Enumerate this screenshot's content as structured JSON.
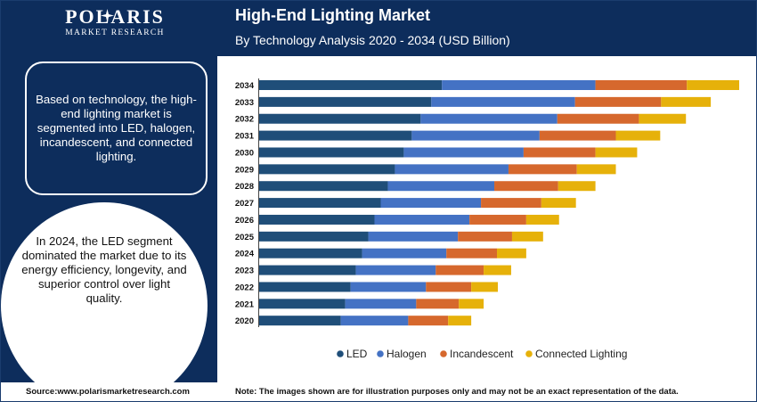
{
  "logo": {
    "name": "POLARIS",
    "sub": "MARKET RESEARCH"
  },
  "side": {
    "box_text": "Based on technology, the high-end lighting market is segmented into LED, halogen, incandescent, and connected lighting.",
    "circle_text": "In 2024, the LED segment dominated the market due to its energy efficiency, longevity, and superior control over light quality."
  },
  "footer": {
    "source": "Source:www.polarismarketresearch.com",
    "note": "Note: The images shown are for illustration purposes only and may not be an exact representation of the data."
  },
  "colors": {
    "navy": "#0d2d5c",
    "led": "#1f4e79",
    "halogen": "#4472c4",
    "incandescent": "#d6682d",
    "connected": "#e6b10a"
  },
  "chart_data": {
    "type": "bar",
    "orientation": "horizontal",
    "stacked": true,
    "title": "High-End Lighting Market",
    "subtitle": "By Technology Analysis 2020 - 2034 (USD Billion)",
    "categories": [
      "2034",
      "2033",
      "2032",
      "2031",
      "2030",
      "2029",
      "2028",
      "2027",
      "2026",
      "2025",
      "2024",
      "2023",
      "2022",
      "2021",
      "2020"
    ],
    "series": [
      {
        "name": "LED",
        "color": "#1f4e79",
        "values": [
          20.6,
          19.4,
          18.2,
          17.2,
          16.3,
          15.3,
          14.5,
          13.7,
          13.0,
          12.3,
          11.6,
          10.9,
          10.3,
          9.7,
          9.2
        ]
      },
      {
        "name": "Halogen",
        "color": "#4472c4",
        "values": [
          17.3,
          16.2,
          15.4,
          14.4,
          13.5,
          12.8,
          12.0,
          11.3,
          10.7,
          10.1,
          9.5,
          9.0,
          8.5,
          8.0,
          7.6
        ]
      },
      {
        "name": "Incandescent",
        "color": "#d6682d",
        "values": [
          10.3,
          9.7,
          9.2,
          8.6,
          8.1,
          7.7,
          7.2,
          6.8,
          6.4,
          6.1,
          5.7,
          5.4,
          5.1,
          4.8,
          4.5
        ]
      },
      {
        "name": "Connected Lighting",
        "color": "#e6b10a",
        "values": [
          5.9,
          5.6,
          5.3,
          5.0,
          4.7,
          4.4,
          4.2,
          3.9,
          3.7,
          3.5,
          3.3,
          3.1,
          3.0,
          2.8,
          2.6
        ]
      }
    ],
    "xlim": [
      0,
      54.2
    ],
    "x_axis_visible": false,
    "grid": false,
    "legend": "bottom"
  }
}
